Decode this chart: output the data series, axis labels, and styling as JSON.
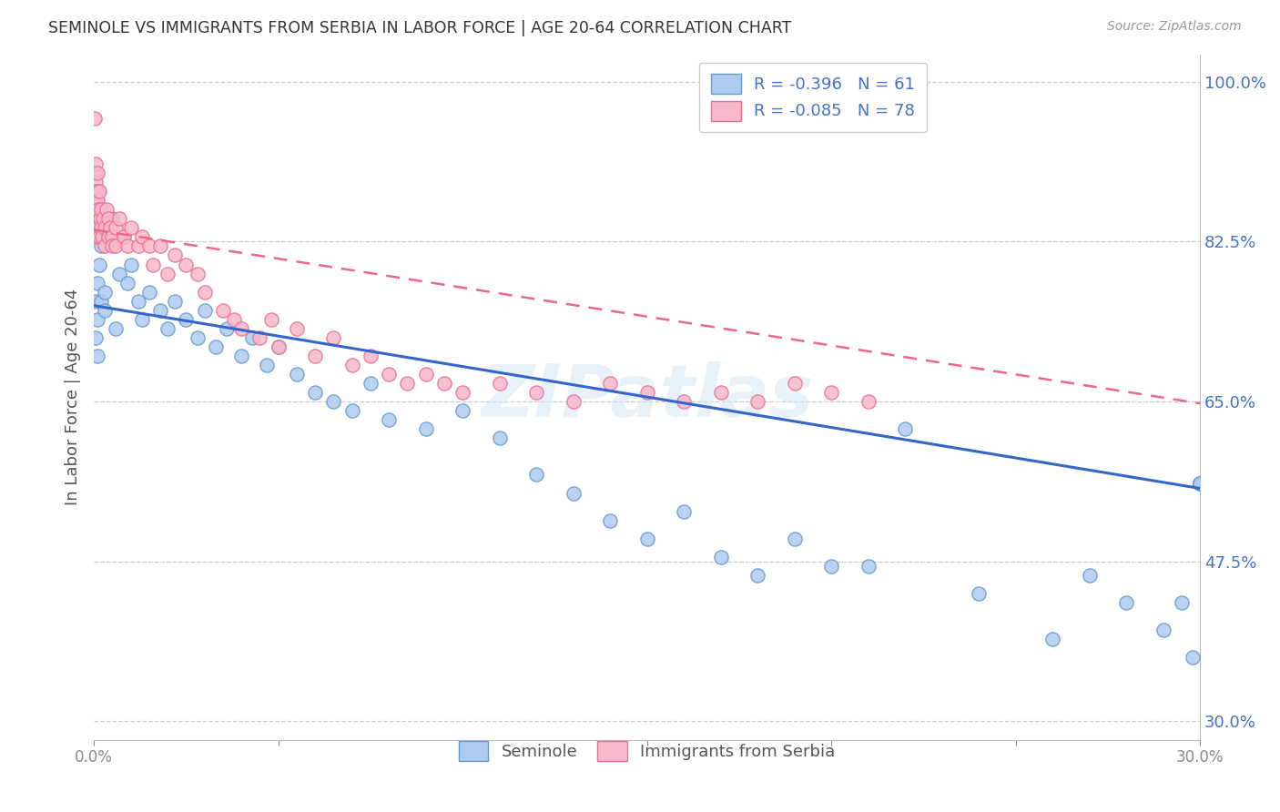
{
  "title": "SEMINOLE VS IMMIGRANTS FROM SERBIA IN LABOR FORCE | AGE 20-64 CORRELATION CHART",
  "source": "Source: ZipAtlas.com",
  "ylabel": "In Labor Force | Age 20-64",
  "xlim": [
    0.0,
    0.3
  ],
  "ylim": [
    0.28,
    1.03
  ],
  "ytick_vals": [
    0.3,
    0.475,
    0.65,
    0.825,
    1.0
  ],
  "ytick_labels": [
    "30.0%",
    "47.5%",
    "65.0%",
    "82.5%",
    "100.0%"
  ],
  "xtick_vals": [
    0.0,
    0.05,
    0.1,
    0.15,
    0.2,
    0.25,
    0.3
  ],
  "xtick_labels": [
    "0.0%",
    "",
    "",
    "",
    "",
    "",
    "30.0%"
  ],
  "blue_scatter_face": "#aeccf0",
  "blue_scatter_edge": "#6699cc",
  "pink_scatter_face": "#f8b8cc",
  "pink_scatter_edge": "#e87090",
  "trendline_blue_color": "#3366cc",
  "trendline_pink_color": "#ee6688",
  "watermark": "ZIPatlas",
  "legend_label_blue": "R = -0.396   N = 61",
  "legend_label_pink": "R = -0.085   N = 78",
  "bottom_label_blue": "Seminole",
  "bottom_label_pink": "Immigrants from Serbia",
  "blue_points_x": [
    0.0005,
    0.0005,
    0.001,
    0.001,
    0.001,
    0.0015,
    0.002,
    0.002,
    0.003,
    0.003,
    0.005,
    0.006,
    0.007,
    0.008,
    0.009,
    0.01,
    0.012,
    0.013,
    0.015,
    0.018,
    0.02,
    0.022,
    0.025,
    0.028,
    0.03,
    0.033,
    0.036,
    0.04,
    0.043,
    0.047,
    0.05,
    0.055,
    0.06,
    0.065,
    0.07,
    0.075,
    0.08,
    0.09,
    0.1,
    0.11,
    0.12,
    0.13,
    0.14,
    0.15,
    0.16,
    0.17,
    0.18,
    0.19,
    0.2,
    0.21,
    0.22,
    0.24,
    0.26,
    0.27,
    0.28,
    0.29,
    0.295,
    0.298,
    0.3,
    0.3,
    0.3
  ],
  "blue_points_y": [
    0.76,
    0.72,
    0.78,
    0.74,
    0.7,
    0.8,
    0.82,
    0.76,
    0.75,
    0.77,
    0.85,
    0.73,
    0.79,
    0.83,
    0.78,
    0.8,
    0.76,
    0.74,
    0.77,
    0.75,
    0.73,
    0.76,
    0.74,
    0.72,
    0.75,
    0.71,
    0.73,
    0.7,
    0.72,
    0.69,
    0.71,
    0.68,
    0.66,
    0.65,
    0.64,
    0.67,
    0.63,
    0.62,
    0.64,
    0.61,
    0.57,
    0.55,
    0.52,
    0.5,
    0.53,
    0.48,
    0.46,
    0.5,
    0.47,
    0.47,
    0.62,
    0.44,
    0.39,
    0.46,
    0.43,
    0.4,
    0.43,
    0.37,
    0.56,
    0.56,
    0.56
  ],
  "pink_points_x": [
    0.0002,
    0.0002,
    0.0003,
    0.0003,
    0.0004,
    0.0004,
    0.0005,
    0.0005,
    0.0006,
    0.0006,
    0.0007,
    0.0007,
    0.0008,
    0.0008,
    0.0009,
    0.001,
    0.001,
    0.001,
    0.0012,
    0.0013,
    0.0015,
    0.0015,
    0.0017,
    0.002,
    0.002,
    0.0022,
    0.0025,
    0.003,
    0.003,
    0.0035,
    0.004,
    0.004,
    0.0045,
    0.005,
    0.005,
    0.006,
    0.006,
    0.007,
    0.008,
    0.009,
    0.01,
    0.012,
    0.013,
    0.015,
    0.016,
    0.018,
    0.02,
    0.022,
    0.025,
    0.028,
    0.03,
    0.035,
    0.038,
    0.04,
    0.045,
    0.048,
    0.05,
    0.055,
    0.06,
    0.065,
    0.07,
    0.075,
    0.08,
    0.085,
    0.09,
    0.095,
    0.1,
    0.11,
    0.12,
    0.13,
    0.14,
    0.15,
    0.16,
    0.17,
    0.18,
    0.19,
    0.2,
    0.21
  ],
  "pink_points_y": [
    0.96,
    0.9,
    0.87,
    0.88,
    0.89,
    0.84,
    0.86,
    0.91,
    0.85,
    0.88,
    0.87,
    0.84,
    0.86,
    0.83,
    0.88,
    0.9,
    0.85,
    0.87,
    0.84,
    0.86,
    0.83,
    0.88,
    0.85,
    0.86,
    0.84,
    0.83,
    0.85,
    0.84,
    0.82,
    0.86,
    0.85,
    0.83,
    0.84,
    0.83,
    0.82,
    0.84,
    0.82,
    0.85,
    0.83,
    0.82,
    0.84,
    0.82,
    0.83,
    0.82,
    0.8,
    0.82,
    0.79,
    0.81,
    0.8,
    0.79,
    0.77,
    0.75,
    0.74,
    0.73,
    0.72,
    0.74,
    0.71,
    0.73,
    0.7,
    0.72,
    0.69,
    0.7,
    0.68,
    0.67,
    0.68,
    0.67,
    0.66,
    0.67,
    0.66,
    0.65,
    0.67,
    0.66,
    0.65,
    0.66,
    0.65,
    0.67,
    0.66,
    0.65
  ],
  "trendline_blue_x0": 0.0,
  "trendline_blue_y0": 0.755,
  "trendline_blue_x1": 0.3,
  "trendline_blue_y1": 0.555,
  "trendline_pink_x0": 0.0,
  "trendline_pink_y0": 0.838,
  "trendline_pink_x1": 0.3,
  "trendline_pink_y1": 0.648
}
